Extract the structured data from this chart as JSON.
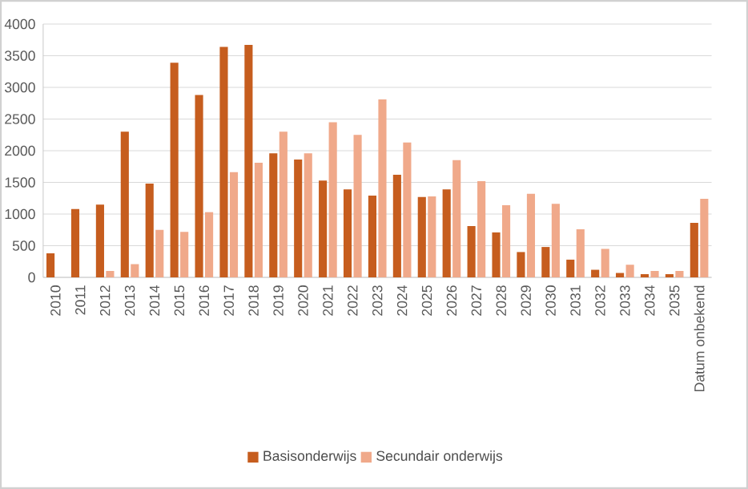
{
  "chart_data": {
    "type": "bar",
    "categories": [
      "2010",
      "2011",
      "2012",
      "2013",
      "2014",
      "2015",
      "2016",
      "2017",
      "2018",
      "2019",
      "2020",
      "2021",
      "2022",
      "2023",
      "2024",
      "2025",
      "2026",
      "2027",
      "2028",
      "2029",
      "2030",
      "2031",
      "2032",
      "2033",
      "2034",
      "2035",
      "Datum onbekend"
    ],
    "series": [
      {
        "name": "Basisonderwijs",
        "color": "#c65d1e",
        "values": [
          380,
          1080,
          1150,
          2300,
          1480,
          3390,
          2880,
          3640,
          3670,
          1960,
          1860,
          1530,
          1390,
          1290,
          1620,
          1270,
          1390,
          810,
          710,
          400,
          480,
          280,
          120,
          70,
          50,
          50,
          860
        ]
      },
      {
        "name": "Secundair onderwijs",
        "color": "#f0a98a",
        "values": [
          0,
          0,
          100,
          210,
          750,
          720,
          1030,
          1660,
          1810,
          2300,
          1960,
          2450,
          2250,
          2810,
          2130,
          1280,
          1850,
          1520,
          1140,
          1320,
          1160,
          760,
          450,
          200,
          100,
          100,
          1240
        ]
      }
    ],
    "ylim": [
      0,
      4000
    ],
    "yticks": [
      0,
      500,
      1000,
      1500,
      2000,
      2500,
      3000,
      3500,
      4000
    ],
    "grid": "y",
    "legend": "bottom"
  }
}
